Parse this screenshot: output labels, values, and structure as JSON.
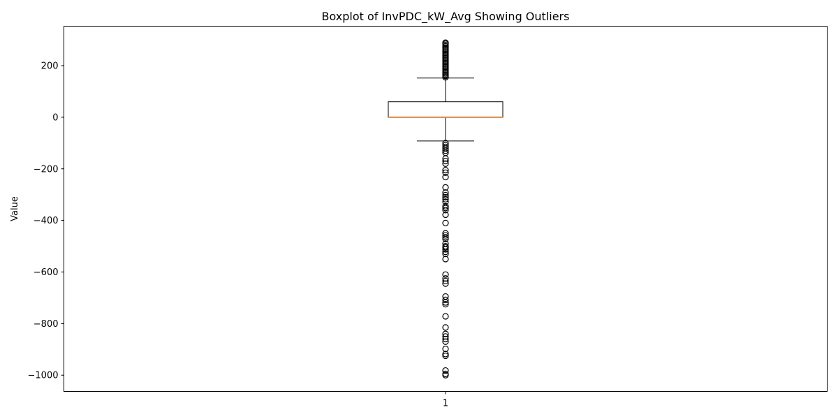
{
  "chart_data": {
    "type": "box",
    "title": "Boxplot of InvPDC_kW_Avg Showing Outliers",
    "xlabel": "",
    "ylabel": "Value",
    "ylim": [
      -1063,
      353
    ],
    "yticks": [
      200,
      0,
      -200,
      -400,
      -600,
      -800,
      -1000
    ],
    "ytick_labels": [
      "200",
      "0",
      "−200",
      "−400",
      "−600",
      "−800",
      "−1000"
    ],
    "categories": [
      "1"
    ],
    "boxes": [
      {
        "category": "1",
        "whisker_low": -92,
        "q1": 0,
        "median": 0,
        "q3": 60,
        "whisker_high": 152,
        "outliers_high": [
          155,
          160,
          165,
          170,
          175,
          180,
          185,
          190,
          195,
          200,
          205,
          210,
          215,
          220,
          225,
          230,
          235,
          240,
          245,
          250,
          255,
          260,
          265,
          270,
          275,
          280,
          285,
          289
        ],
        "outliers_low": [
          -100,
          -108,
          -115,
          -122,
          -130,
          -138,
          -160,
          -170,
          -180,
          -205,
          -215,
          -232,
          -272,
          -292,
          -302,
          -310,
          -318,
          -328,
          -345,
          -352,
          -360,
          -378,
          -410,
          -450,
          -458,
          -465,
          -472,
          -490,
          -500,
          -505,
          -512,
          -522,
          -530,
          -550,
          -610,
          -625,
          -635,
          -645,
          -695,
          -708,
          -718,
          -725,
          -772,
          -815,
          -840,
          -850,
          -860,
          -870,
          -898,
          -918,
          -925,
          -982,
          -995,
          -1000
        ]
      }
    ],
    "colors": {
      "box": "#000000",
      "median": "#ff7f0e",
      "outlier": "#000000"
    },
    "grid": false
  }
}
